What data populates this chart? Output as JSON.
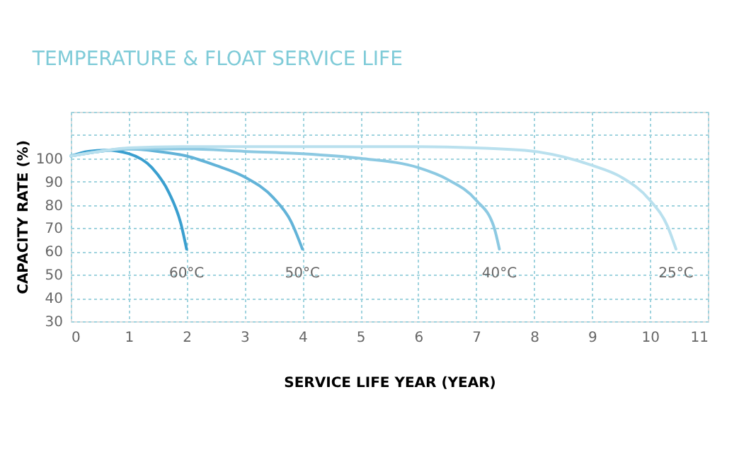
{
  "chart_data": {
    "type": "line",
    "title": "TEMPERATURE & FLOAT SERVICE LIFE",
    "xlabel": "SERVICE LIFE YEAR (YEAR)",
    "ylabel": "CAPACITY RATE (%)",
    "xlim": [
      0,
      11
    ],
    "xticks": [
      0,
      1,
      2,
      3,
      4,
      5,
      6,
      7,
      8,
      9,
      10,
      11
    ],
    "ylim": [
      30,
      120
    ],
    "yticks": [
      30,
      40,
      50,
      60,
      70,
      80,
      90,
      100,
      {
        "value": 110,
        "label": null
      },
      {
        "value": 120,
        "label": null
      }
    ],
    "grid": true,
    "legend": false,
    "marker": "none",
    "line_style": "solid",
    "series": [
      {
        "name": "60°C",
        "color": "#3a9fcf",
        "x": [
          0,
          0.3,
          0.6,
          1,
          1.4,
          1.7,
          1.9,
          2
        ],
        "values": [
          101,
          103,
          103.5,
          102,
          96,
          85,
          72,
          61
        ]
      },
      {
        "name": "50°C",
        "color": "#62b3d8",
        "x": [
          0,
          0.5,
          1,
          1.5,
          2,
          2.5,
          3,
          3.5,
          3.8,
          4
        ],
        "values": [
          101,
          103,
          104,
          103,
          101,
          97,
          92,
          83,
          73,
          61
        ]
      },
      {
        "name": "40°C",
        "color": "#8cc9e2",
        "x": [
          0,
          0.5,
          1,
          2,
          3,
          4,
          5,
          6,
          6.5,
          7,
          7.3,
          7.4
        ],
        "values": [
          101,
          103,
          104,
          104,
          103,
          102,
          100,
          96,
          91,
          82,
          71,
          61
        ]
      },
      {
        "name": "25°C",
        "color": "#b9e0ee",
        "x": [
          0,
          0.5,
          1,
          2,
          4,
          6,
          7,
          8,
          9,
          9.5,
          10,
          10.3,
          10.45
        ],
        "values": [
          101,
          103,
          104.5,
          105,
          105,
          105,
          104.5,
          103,
          97,
          92,
          82,
          71,
          61
        ]
      }
    ]
  }
}
